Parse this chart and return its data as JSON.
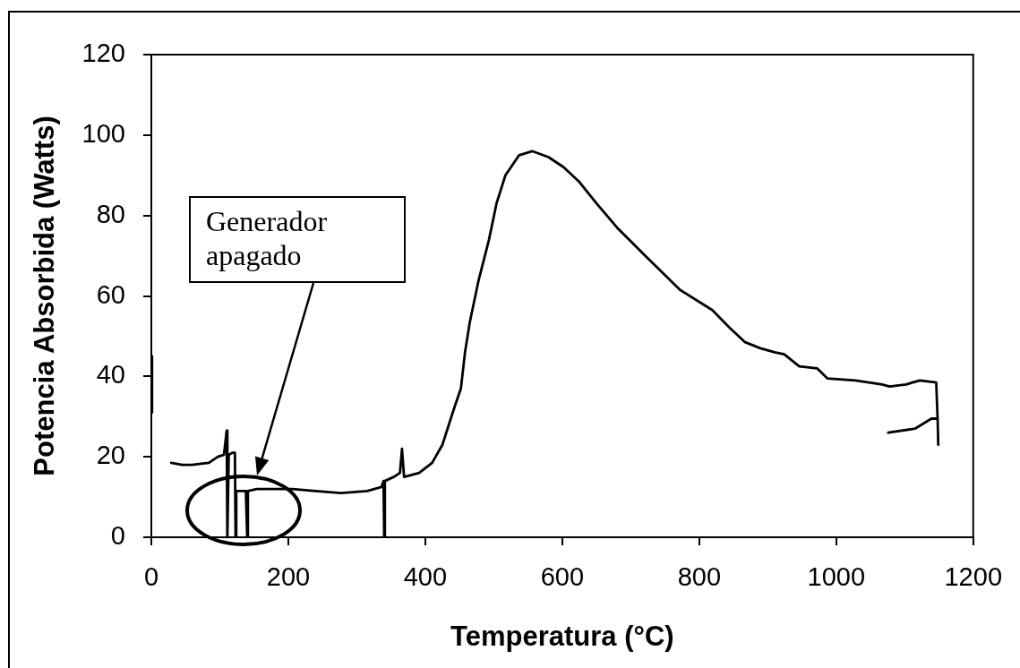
{
  "chart_data": {
    "type": "line",
    "xlabel": "Temperatura (°C)",
    "ylabel": "Potencia Absorbida (Watts)",
    "series": [
      {
        "color": "#000000",
        "x": [
          1,
          1
        ],
        "values": [
          45,
          31
        ]
      },
      {
        "color": "#000000",
        "x": [
          29,
          45,
          59,
          84,
          97,
          106,
          110,
          111,
          113,
          118,
          122,
          123,
          124,
          138,
          140,
          141,
          154,
          180,
          206,
          240,
          277,
          315,
          336,
          339,
          340,
          341,
          354,
          363,
          366,
          369,
          391,
          410,
          425,
          441,
          452,
          458,
          465,
          478,
          493,
          504,
          517,
          537,
          556,
          580,
          602,
          624,
          650,
          680,
          724,
          772,
          819,
          845,
          867,
          889,
          910,
          924,
          946,
          972,
          987,
          1028,
          1067,
          1078,
          1102,
          1122,
          1146,
          1148,
          1149,
          1148,
          1139,
          1115,
          1076
        ],
        "values": [
          18.5,
          18,
          18,
          18.5,
          20,
          20.5,
          26.5,
          0,
          20.5,
          21,
          21,
          0,
          11.5,
          11.5,
          0,
          11.5,
          12,
          12,
          12,
          11.5,
          11,
          11.5,
          12.5,
          14,
          0,
          14,
          15,
          16,
          22,
          15,
          16,
          18.5,
          23,
          31.5,
          37,
          46,
          53.5,
          64,
          74,
          83,
          90,
          95,
          96,
          94.5,
          92,
          88.5,
          83,
          77,
          69.5,
          61.5,
          56.5,
          52,
          48.5,
          47,
          46,
          45.5,
          42.5,
          42,
          39.5,
          39,
          38,
          37.5,
          38,
          39,
          38.5,
          29.5,
          23,
          29.5,
          29.5,
          27,
          26
        ]
      }
    ],
    "xlim": [
      0,
      1200
    ],
    "xticks": [
      0,
      200,
      400,
      600,
      800,
      1000,
      1200
    ],
    "ylim": [
      0,
      120
    ],
    "yticks": [
      0,
      20,
      40,
      60,
      80,
      100,
      120
    ],
    "annotations": [
      "Generador apagado"
    ]
  }
}
